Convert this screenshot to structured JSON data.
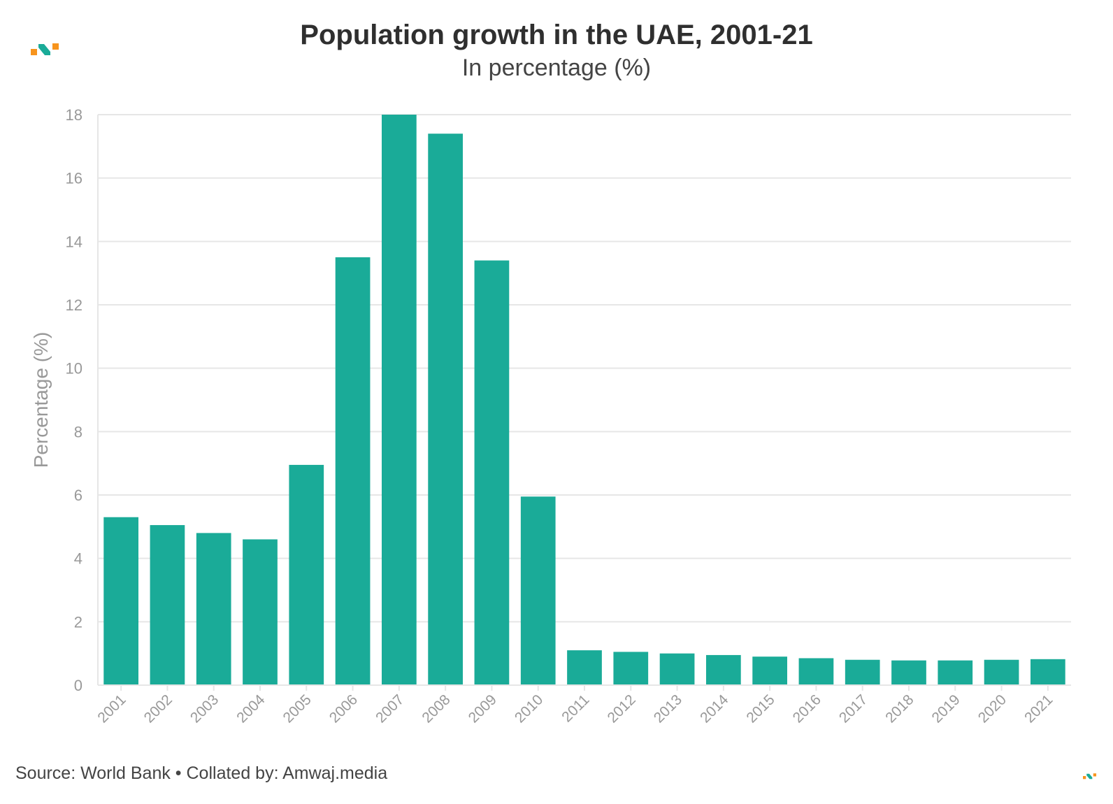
{
  "header": {
    "title": "Population growth in the UAE, 2001-21",
    "subtitle": "In percentage (%)"
  },
  "footer": {
    "source": "Source: World Bank • Collated by: Amwaj.media"
  },
  "colors": {
    "bar": "#1aab98",
    "grid": "#e6e6e6",
    "axis_text": "#999999",
    "logo_orange": "#f7941d",
    "logo_teal": "#1aab98"
  },
  "icons": {
    "brand": "amwaj-logo-icon"
  },
  "chart_data": {
    "type": "bar",
    "title": "Population growth in the UAE, 2001-21",
    "subtitle": "In percentage (%)",
    "xlabel": "",
    "ylabel": "Percentage (%)",
    "ylim": [
      0,
      18
    ],
    "yticks": [
      0,
      2,
      4,
      6,
      8,
      10,
      12,
      14,
      16,
      18
    ],
    "grid": true,
    "legend": "none",
    "categories": [
      "2001",
      "2002",
      "2003",
      "2004",
      "2005",
      "2006",
      "2007",
      "2008",
      "2009",
      "2010",
      "2011",
      "2012",
      "2013",
      "2014",
      "2015",
      "2016",
      "2017",
      "2018",
      "2019",
      "2020",
      "2021"
    ],
    "values": [
      5.3,
      5.05,
      4.8,
      4.6,
      6.95,
      13.5,
      18.0,
      17.4,
      13.4,
      5.95,
      1.1,
      1.05,
      1.0,
      0.95,
      0.9,
      0.85,
      0.8,
      0.78,
      0.78,
      0.8,
      0.82
    ]
  }
}
